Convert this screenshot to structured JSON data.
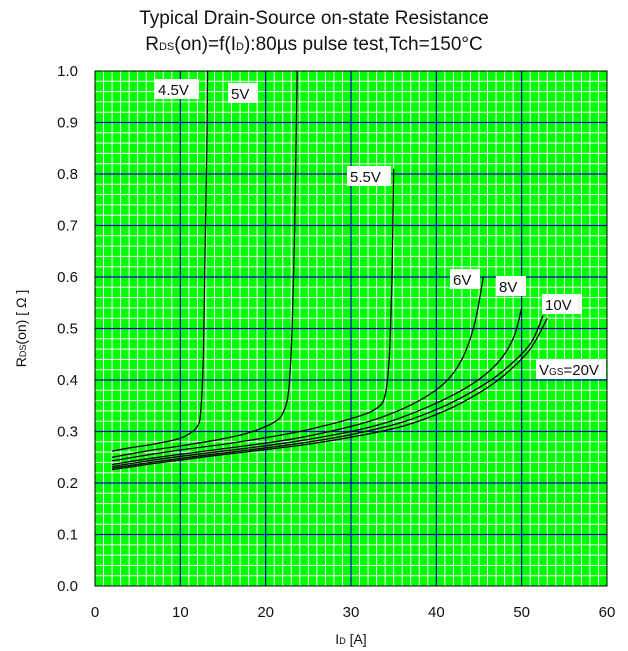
{
  "chart_data": {
    "type": "line",
    "title_line1": "Typical Drain-Source on-state Resistance",
    "title_line2": {
      "r": "R",
      "r_sub": "DS",
      "mid": "(on)=f(I",
      "i_sub": "D",
      "tail": "):80µs pulse test,Tch=150°C"
    },
    "xlabel": {
      "main": "I",
      "sub": "D",
      "unit": " [A]"
    },
    "ylabel": {
      "main": "R",
      "sub": "DS",
      "tail": "(on) [ Ω ]"
    },
    "xlim": [
      0,
      60
    ],
    "ylim": [
      0,
      1.0
    ],
    "xticks": [
      "0",
      "10",
      "20",
      "30",
      "40",
      "50",
      "60"
    ],
    "yticks": [
      "0.0",
      "0.1",
      "0.2",
      "0.3",
      "0.4",
      "0.5",
      "0.6",
      "0.7",
      "0.8",
      "0.9",
      "1.0"
    ],
    "grid": true,
    "series": [
      {
        "name": "4.5V",
        "points": [
          [
            2,
            0.262
          ],
          [
            4,
            0.268
          ],
          [
            6,
            0.273
          ],
          [
            8,
            0.279
          ],
          [
            10,
            0.287
          ],
          [
            11,
            0.295
          ],
          [
            12,
            0.31
          ],
          [
            12.4,
            0.34
          ],
          [
            12.7,
            0.45
          ],
          [
            12.9,
            0.65
          ],
          [
            13.1,
            0.85
          ],
          [
            13.2,
            1.0
          ]
        ]
      },
      {
        "name": "5V",
        "points": [
          [
            2,
            0.25
          ],
          [
            6,
            0.262
          ],
          [
            10,
            0.272
          ],
          [
            14,
            0.283
          ],
          [
            17,
            0.293
          ],
          [
            19,
            0.303
          ],
          [
            21,
            0.318
          ],
          [
            22,
            0.335
          ],
          [
            22.7,
            0.38
          ],
          [
            23.1,
            0.5
          ],
          [
            23.4,
            0.7
          ],
          [
            23.6,
            0.9
          ],
          [
            23.7,
            1.0
          ]
        ]
      },
      {
        "name": "5.5V",
        "points": [
          [
            2,
            0.243
          ],
          [
            6,
            0.254
          ],
          [
            10,
            0.264
          ],
          [
            15,
            0.275
          ],
          [
            20,
            0.288
          ],
          [
            24,
            0.3
          ],
          [
            28,
            0.316
          ],
          [
            31,
            0.33
          ],
          [
            33,
            0.345
          ],
          [
            34,
            0.37
          ],
          [
            34.5,
            0.45
          ],
          [
            34.8,
            0.6
          ],
          [
            35,
            0.81
          ]
        ]
      },
      {
        "name": "6V",
        "points": [
          [
            2,
            0.236
          ],
          [
            7,
            0.249
          ],
          [
            12,
            0.26
          ],
          [
            18,
            0.273
          ],
          [
            24,
            0.288
          ],
          [
            30,
            0.31
          ],
          [
            34,
            0.33
          ],
          [
            38,
            0.36
          ],
          [
            41,
            0.395
          ],
          [
            43,
            0.44
          ],
          [
            44.5,
            0.51
          ],
          [
            45.5,
            0.6
          ]
        ]
      },
      {
        "name": "8V",
        "points": [
          [
            2,
            0.232
          ],
          [
            7,
            0.245
          ],
          [
            12,
            0.256
          ],
          [
            18,
            0.268
          ],
          [
            24,
            0.282
          ],
          [
            30,
            0.3
          ],
          [
            35,
            0.322
          ],
          [
            40,
            0.355
          ],
          [
            44,
            0.39
          ],
          [
            47,
            0.43
          ],
          [
            49,
            0.48
          ],
          [
            50,
            0.54
          ]
        ]
      },
      {
        "name": "10V",
        "points": [
          [
            2,
            0.229
          ],
          [
            7,
            0.241
          ],
          [
            12,
            0.252
          ],
          [
            18,
            0.264
          ],
          [
            24,
            0.277
          ],
          [
            30,
            0.294
          ],
          [
            36,
            0.318
          ],
          [
            41,
            0.35
          ],
          [
            45,
            0.385
          ],
          [
            48,
            0.42
          ],
          [
            51,
            0.47
          ],
          [
            52.5,
            0.525
          ]
        ]
      },
      {
        "name": "20V",
        "points": [
          [
            2,
            0.226
          ],
          [
            7,
            0.238
          ],
          [
            12,
            0.249
          ],
          [
            18,
            0.261
          ],
          [
            24,
            0.273
          ],
          [
            30,
            0.289
          ],
          [
            36,
            0.31
          ],
          [
            41,
            0.34
          ],
          [
            45,
            0.375
          ],
          [
            48,
            0.41
          ],
          [
            51,
            0.46
          ],
          [
            53,
            0.52
          ]
        ]
      }
    ],
    "curve_labels": [
      {
        "text": "4.5V"
      },
      {
        "text": "5V"
      },
      {
        "text": "5.5V"
      },
      {
        "text": "6V"
      },
      {
        "text": "8V"
      },
      {
        "text": "10V"
      },
      {
        "text": "V",
        "sub": "GS",
        "tail": "=20V"
      }
    ],
    "colors": {
      "plot_background": "#00ff00",
      "minor_grid": "#ffffff",
      "major_grid": "#0000cc",
      "curves": "#000000"
    }
  }
}
